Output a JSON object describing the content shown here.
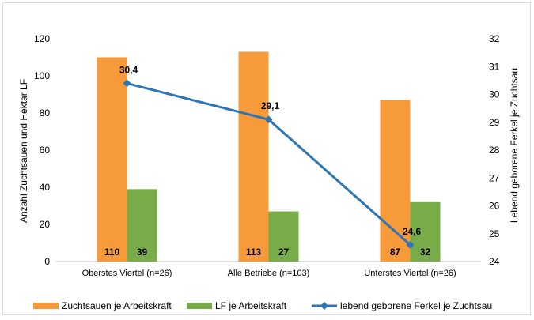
{
  "chart_data": {
    "type": "bar",
    "categories": [
      "Oberstes Viertel (n=26)",
      "Alle Betriebe (n=103)",
      "Unterstes Viertel (n=26)"
    ],
    "series": [
      {
        "name": "Zuchtsauen je Arbeitskraft",
        "kind": "bar",
        "axis": "left",
        "color": "#f79a3a",
        "values": [
          110,
          113,
          87
        ],
        "labels": [
          "110",
          "113",
          "87"
        ]
      },
      {
        "name": "LF je Arbeitskraft",
        "kind": "bar",
        "axis": "left",
        "color": "#77ac48",
        "values": [
          39,
          27,
          32
        ],
        "labels": [
          "39",
          "27",
          "32"
        ]
      },
      {
        "name": "lebend geborene Ferkel je Zuchtsau",
        "kind": "line",
        "axis": "right",
        "color": "#2e75b6",
        "values": [
          30.4,
          29.1,
          24.6
        ],
        "labels": [
          "30,4",
          "29,1",
          "24,6"
        ]
      }
    ],
    "ylabel": "Anzahl Zuchtsauen und Hektar LF",
    "y2label": "Lebend geborene Ferkel je Zuchtsau",
    "ylim": [
      0,
      120
    ],
    "y2lim": [
      24,
      32
    ],
    "yticks": [
      "0",
      "20",
      "40",
      "60",
      "80",
      "100",
      "120"
    ],
    "y2ticks": [
      "24",
      "25",
      "26",
      "27",
      "28",
      "29",
      "30",
      "31",
      "32"
    ],
    "grid": false,
    "legend_position": "bottom"
  }
}
